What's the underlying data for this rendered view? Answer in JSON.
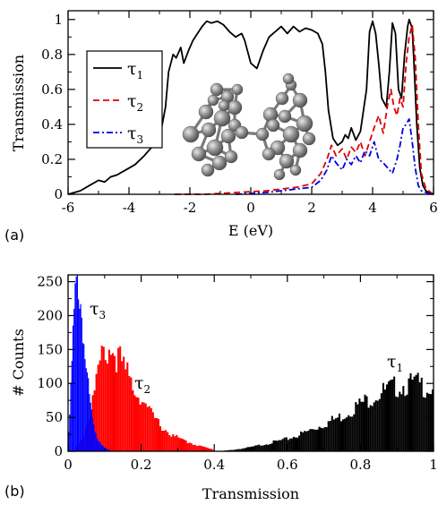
{
  "chart_data": [
    {
      "panel": "(a)",
      "type": "line",
      "xlabel": "E (eV)",
      "ylabel": "Transmission",
      "xlim": [
        -6,
        6
      ],
      "ylim": [
        0,
        1.05
      ],
      "xticks": [
        "-6",
        "-4",
        "-2",
        "0",
        "2",
        "4",
        "6"
      ],
      "yticks": [
        "0",
        "0.2",
        "0.4",
        "0.6",
        "0.8",
        "1"
      ],
      "legend_position": "left",
      "grid": false,
      "has_inset_molecule_image": true,
      "series": [
        {
          "name": "τ1",
          "label_base": "τ",
          "label_sub": "1",
          "color": "#000000",
          "dash": "solid",
          "x": [
            -6.0,
            -5.6,
            -5.3,
            -5.0,
            -4.8,
            -4.6,
            -4.4,
            -4.1,
            -3.8,
            -3.5,
            -3.3,
            -3.1,
            -2.95,
            -2.8,
            -2.7,
            -2.55,
            -2.45,
            -2.3,
            -2.2,
            -2.05,
            -1.9,
            -1.75,
            -1.6,
            -1.45,
            -1.3,
            -1.1,
            -0.9,
            -0.7,
            -0.5,
            -0.3,
            -0.2,
            0.0,
            0.2,
            0.4,
            0.6,
            0.8,
            1.0,
            1.2,
            1.4,
            1.6,
            1.8,
            2.0,
            2.2,
            2.35,
            2.45,
            2.55,
            2.7,
            2.85,
            3.0,
            3.1,
            3.2,
            3.3,
            3.45,
            3.6,
            3.8,
            3.9,
            4.0,
            4.1,
            4.2,
            4.3,
            4.45,
            4.55,
            4.65,
            4.75,
            4.85,
            4.95,
            5.05,
            5.15,
            5.2,
            5.3,
            5.35,
            5.45,
            5.55,
            5.65,
            5.75,
            5.85,
            6.0
          ],
          "y": [
            0.0,
            0.02,
            0.05,
            0.08,
            0.07,
            0.1,
            0.11,
            0.14,
            0.17,
            0.22,
            0.26,
            0.3,
            0.36,
            0.5,
            0.7,
            0.8,
            0.78,
            0.84,
            0.75,
            0.82,
            0.88,
            0.92,
            0.96,
            0.99,
            0.98,
            0.99,
            0.97,
            0.93,
            0.9,
            0.92,
            0.88,
            0.75,
            0.72,
            0.82,
            0.9,
            0.93,
            0.96,
            0.92,
            0.96,
            0.93,
            0.95,
            0.94,
            0.92,
            0.86,
            0.7,
            0.48,
            0.32,
            0.28,
            0.3,
            0.34,
            0.32,
            0.38,
            0.31,
            0.36,
            0.6,
            0.93,
            0.99,
            0.92,
            0.75,
            0.55,
            0.5,
            0.7,
            0.98,
            0.92,
            0.6,
            0.55,
            0.8,
            0.96,
            1.0,
            0.95,
            0.78,
            0.4,
            0.15,
            0.05,
            0.02,
            0.01,
            0.0
          ]
        },
        {
          "name": "τ2",
          "label_base": "τ",
          "label_sub": "2",
          "color": "#e00000",
          "dash": "dashed",
          "x": [
            -2.5,
            -1.5,
            -0.5,
            0.5,
            1.0,
            1.5,
            2.0,
            2.3,
            2.5,
            2.65,
            2.8,
            3.0,
            3.15,
            3.3,
            3.45,
            3.6,
            3.75,
            3.9,
            4.05,
            4.2,
            4.35,
            4.5,
            4.6,
            4.7,
            4.8,
            4.9,
            5.0,
            5.1,
            5.2,
            5.3,
            5.4,
            5.5,
            5.6,
            5.75,
            6.0
          ],
          "y": [
            0.0,
            0.0,
            0.01,
            0.02,
            0.03,
            0.04,
            0.06,
            0.12,
            0.2,
            0.28,
            0.22,
            0.26,
            0.2,
            0.27,
            0.24,
            0.3,
            0.22,
            0.3,
            0.38,
            0.45,
            0.35,
            0.52,
            0.6,
            0.5,
            0.45,
            0.55,
            0.5,
            0.75,
            0.9,
            0.97,
            0.78,
            0.4,
            0.12,
            0.03,
            0.0
          ]
        },
        {
          "name": "τ3",
          "label_base": "τ",
          "label_sub": "3",
          "color": "#0000e0",
          "dash": "dashdot",
          "x": [
            -0.5,
            0.5,
            1.0,
            1.5,
            2.0,
            2.3,
            2.5,
            2.65,
            2.8,
            3.0,
            3.15,
            3.3,
            3.45,
            3.6,
            3.75,
            3.9,
            4.05,
            4.2,
            4.35,
            4.5,
            4.65,
            4.8,
            4.9,
            5.0,
            5.1,
            5.2,
            5.3,
            5.4,
            5.5,
            5.6,
            5.75,
            6.0
          ],
          "y": [
            0.0,
            0.01,
            0.02,
            0.03,
            0.04,
            0.08,
            0.14,
            0.22,
            0.18,
            0.14,
            0.2,
            0.17,
            0.22,
            0.18,
            0.25,
            0.22,
            0.3,
            0.2,
            0.18,
            0.15,
            0.12,
            0.2,
            0.28,
            0.38,
            0.4,
            0.43,
            0.3,
            0.15,
            0.05,
            0.02,
            0.01,
            0.0
          ]
        }
      ]
    },
    {
      "panel": "(b)",
      "type": "bar",
      "subtype": "histogram",
      "xlabel": "Transmission",
      "ylabel": "# Counts",
      "xlim": [
        0,
        1
      ],
      "ylim": [
        0,
        260
      ],
      "xticks": [
        "0",
        "0.2",
        "0.4",
        "0.6",
        "0.8",
        "1"
      ],
      "yticks": [
        "0",
        "50",
        "100",
        "150",
        "200",
        "250"
      ],
      "grid": false,
      "series": [
        {
          "name": "τ1",
          "label_base": "τ",
          "label_sub": "1",
          "color": "#000000",
          "x_range": [
            0.41,
            1.0
          ],
          "bin_width": 0.005,
          "anchors_x": [
            0.41,
            0.45,
            0.5,
            0.55,
            0.6,
            0.65,
            0.7,
            0.75,
            0.8,
            0.85,
            0.9,
            0.95,
            1.0
          ],
          "anchors_y": [
            0,
            2,
            6,
            12,
            18,
            28,
            40,
            52,
            70,
            85,
            96,
            100,
            92
          ]
        },
        {
          "name": "τ2",
          "label_base": "τ",
          "label_sub": "2",
          "color": "#ff0000",
          "x_range": [
            0.02,
            0.4
          ],
          "bin_width": 0.005,
          "anchors_x": [
            0.02,
            0.04,
            0.06,
            0.08,
            0.1,
            0.12,
            0.14,
            0.16,
            0.18,
            0.2,
            0.22,
            0.25,
            0.28,
            0.32,
            0.36,
            0.4
          ],
          "anchors_y": [
            5,
            20,
            55,
            110,
            150,
            150,
            135,
            115,
            95,
            80,
            60,
            40,
            25,
            15,
            8,
            2
          ]
        },
        {
          "name": "τ3",
          "label_base": "τ",
          "label_sub": "3",
          "color": "#0000ff",
          "x_range": [
            0.0,
            0.12
          ],
          "bin_width": 0.003,
          "anchors_x": [
            0.0,
            0.01,
            0.02,
            0.03,
            0.04,
            0.05,
            0.06,
            0.07,
            0.08,
            0.1,
            0.12
          ],
          "anchors_y": [
            20,
            120,
            230,
            245,
            190,
            120,
            70,
            40,
            20,
            5,
            0
          ]
        }
      ]
    }
  ]
}
